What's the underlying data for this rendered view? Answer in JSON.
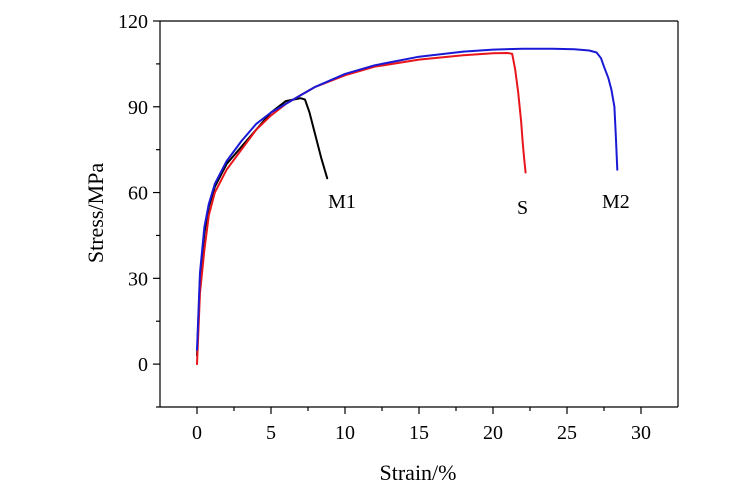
{
  "chart_data": {
    "type": "line",
    "title": "",
    "xlabel": "Strain/%",
    "ylabel": "Stress/MPa",
    "xlim": [
      -2.5,
      32.5
    ],
    "ylim": [
      -15,
      120
    ],
    "xticks": [
      0,
      5,
      10,
      15,
      20,
      25,
      30
    ],
    "yticks": [
      0,
      30,
      60,
      90,
      120
    ],
    "grid": false,
    "legend": "none",
    "series": [
      {
        "name": "M1",
        "color": "#000000",
        "label_at": [
          9.8,
          57
        ],
        "x": [
          0.0,
          0.2,
          0.5,
          0.8,
          1.2,
          2.0,
          3.0,
          4.0,
          5.0,
          6.0,
          6.5,
          7.0,
          7.3,
          7.6,
          8.0,
          8.4,
          8.8
        ],
        "y": [
          3,
          30,
          46,
          55,
          62,
          70,
          76,
          82,
          88,
          92,
          92.5,
          93,
          92.5,
          88,
          80,
          72,
          65
        ]
      },
      {
        "name": "S",
        "color": "#e8151b",
        "label_at": [
          22.0,
          55
        ],
        "x": [
          0.0,
          0.2,
          0.5,
          0.8,
          1.2,
          2.0,
          3.0,
          4.0,
          5.0,
          6.0,
          7.0,
          8.0,
          10.0,
          12.0,
          15.0,
          18.0,
          20.0,
          21.0,
          21.3,
          21.5,
          21.7,
          21.9,
          22.0,
          22.1,
          22.2
        ],
        "y": [
          0,
          25,
          40,
          52,
          60,
          68,
          75,
          82,
          87,
          91,
          94,
          97,
          101,
          104,
          106.5,
          108,
          108.7,
          108.8,
          108.5,
          103,
          95,
          85,
          78,
          72,
          67
        ]
      },
      {
        "name": "M2",
        "color": "#1a1ad6",
        "label_at": [
          28.3,
          57
        ],
        "x": [
          0.0,
          0.2,
          0.5,
          0.8,
          1.2,
          2.0,
          3.0,
          4.0,
          5.0,
          6.0,
          7.0,
          8.0,
          10.0,
          12.0,
          15.0,
          18.0,
          20.0,
          22.0,
          24.0,
          25.5,
          26.5,
          27.0,
          27.3,
          27.5,
          27.8,
          28.0,
          28.2,
          28.3,
          28.4
        ],
        "y": [
          5,
          32,
          48,
          56,
          63,
          71,
          78,
          84,
          88,
          91,
          94,
          97,
          101.5,
          104.5,
          107.5,
          109.3,
          110,
          110.3,
          110.3,
          110.1,
          109.7,
          109,
          107,
          104,
          100,
          96,
          90,
          80,
          68
        ]
      }
    ]
  }
}
